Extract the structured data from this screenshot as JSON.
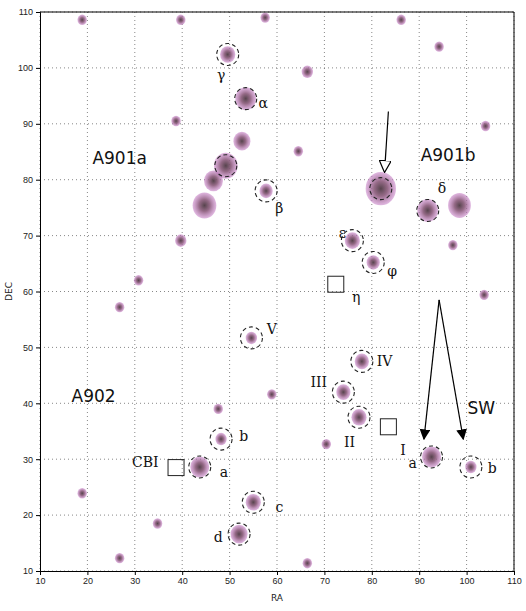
{
  "chart_data": {
    "type": "scatter",
    "x_label": "RA",
    "y_label": "DEC",
    "xlim": [
      10,
      110
    ],
    "ylim": [
      10,
      110
    ],
    "xticks": [
      10,
      20,
      30,
      40,
      50,
      60,
      70,
      80,
      90,
      100,
      110
    ],
    "yticks": [
      10,
      20,
      30,
      40,
      50,
      60,
      70,
      80,
      90,
      100,
      110
    ],
    "grid": true,
    "color": "#c77dc7",
    "peaks": {
      "x": [
        49.2,
        46.6,
        44.7,
        52.6,
        53.4,
        49.6,
        81.9,
        91.8,
        98.5,
        75.9,
        80.3,
        57.7,
        54.6,
        77.9,
        74.0,
        77.3,
        92.6,
        100.9,
        48.2,
        43.7,
        55.0,
        52.0,
        18.9,
        39.7,
        57.5,
        66.4,
        86.2,
        94.2,
        103.7,
        64.5,
        38.7,
        30.8,
        97.1,
        26.8,
        47.6,
        58.9,
        70.4,
        18.9,
        34.8,
        26.8,
        66.4,
        104.0,
        39.7
      ],
      "y": [
        82.5,
        79.8,
        75.4,
        86.9,
        94.5,
        102.4,
        78.4,
        74.5,
        75.4,
        69.1,
        65.2,
        78.0,
        51.7,
        47.5,
        42.0,
        37.5,
        30.4,
        28.6,
        33.6,
        28.6,
        22.3,
        16.6,
        108.6,
        108.6,
        109.0,
        99.3,
        108.6,
        103.8,
        59.4,
        85.1,
        90.5,
        62.0,
        68.3,
        57.2,
        39.0,
        41.6,
        32.7,
        23.9,
        18.5,
        12.3,
        11.4,
        89.6,
        69.1
      ],
      "size": [
        2.5,
        2.0,
        2.5,
        1.8,
        2.2,
        1.6,
        3.2,
        2.2,
        2.4,
        1.6,
        1.4,
        1.4,
        1.2,
        1.5,
        1.5,
        1.6,
        2.0,
        1.2,
        1.2,
        2.0,
        1.6,
        1.8,
        1.0,
        1.0,
        1.0,
        1.2,
        1.0,
        1.0,
        1.0,
        1.0,
        1.0,
        1.0,
        1.0,
        1.0,
        1.0,
        1.0,
        1.0,
        1.0,
        1.0,
        1.0,
        1.0,
        1.0,
        1.2
      ]
    },
    "circles": {
      "x": [
        49.6,
        53.4,
        49.2,
        57.7,
        81.9,
        91.8,
        75.9,
        80.3,
        54.6,
        77.9,
        74.0,
        77.3,
        92.6,
        100.9,
        48.2,
        43.7,
        55.0,
        52.0
      ],
      "y": [
        102.4,
        94.5,
        82.5,
        78.0,
        78.4,
        74.5,
        69.1,
        65.2,
        51.7,
        47.5,
        42.0,
        37.5,
        30.4,
        28.6,
        33.6,
        28.6,
        22.3,
        16.6
      ]
    },
    "boxes": {
      "x": [
        72.4,
        83.5,
        38.7
      ],
      "y": [
        61.3,
        35.8,
        28.5
      ]
    },
    "arrows": [
      {
        "x": [
          83.5,
          82.7
        ],
        "y": [
          92.2,
          81.5
        ]
      },
      {
        "x": [
          94.2,
          91.0
        ],
        "y": [
          58.5,
          33.6
        ]
      },
      {
        "x": [
          94.2,
          99.3
        ],
        "y": [
          58.5,
          33.6
        ]
      }
    ],
    "cluster_labels": [
      {
        "text": "A901a",
        "x": 26.8,
        "y": 83.7
      },
      {
        "text": "A901b",
        "x": 96.1,
        "y": 84.2
      },
      {
        "text": "A902",
        "x": 21.3,
        "y": 41.1
      },
      {
        "text": "SW",
        "x": 103.1,
        "y": 39.0
      }
    ],
    "labels": [
      {
        "text": "γ",
        "x": 48.2,
        "y": 98.5
      },
      {
        "text": "α",
        "x": 57.1,
        "y": 93.5
      },
      {
        "text": "β",
        "x": 60.5,
        "y": 74.8
      },
      {
        "text": "δ",
        "x": 94.8,
        "y": 78.4
      },
      {
        "text": "ε",
        "x": 73.8,
        "y": 70.2
      },
      {
        "text": "φ",
        "x": 84.3,
        "y": 63.5
      },
      {
        "text": "η",
        "x": 76.7,
        "y": 58.8
      },
      {
        "text": "V",
        "x": 58.9,
        "y": 53.2
      },
      {
        "text": "IV",
        "x": 82.7,
        "y": 47.3
      },
      {
        "text": "III",
        "x": 68.8,
        "y": 43.7
      },
      {
        "text": "II",
        "x": 75.3,
        "y": 32.9
      },
      {
        "text": "I",
        "x": 86.6,
        "y": 31.5
      },
      {
        "text": "a",
        "x": 88.6,
        "y": 29.2
      },
      {
        "text": "b",
        "x": 105.4,
        "y": 28.3
      },
      {
        "text": "b",
        "x": 53.0,
        "y": 34.0
      },
      {
        "text": "a",
        "x": 48.8,
        "y": 27.6
      },
      {
        "text": "CBI",
        "x": 32.2,
        "y": 29.4
      },
      {
        "text": "c",
        "x": 60.5,
        "y": 21.2
      },
      {
        "text": "d",
        "x": 47.6,
        "y": 15.9
      }
    ]
  }
}
